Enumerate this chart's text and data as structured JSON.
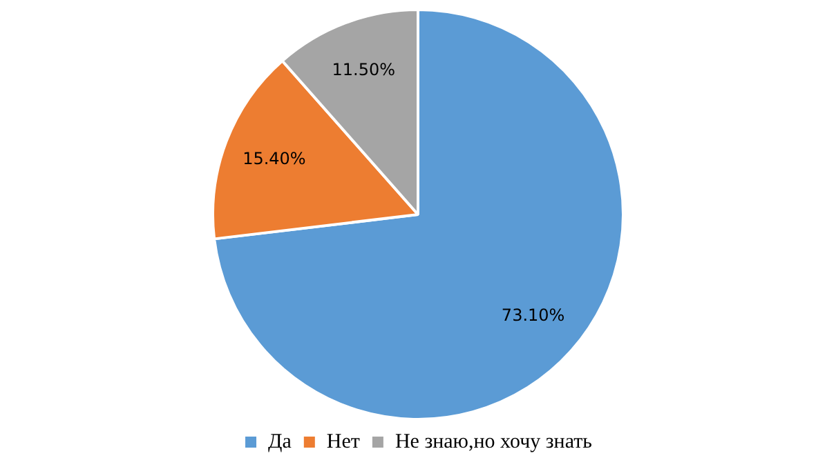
{
  "chart_data": {
    "type": "pie",
    "categories": [
      "Да",
      "Нет",
      "Не знаю,но хочу знать"
    ],
    "values": [
      73.1,
      15.4,
      11.5
    ],
    "colors": [
      "#5b9bd5",
      "#ed7d31",
      "#a5a5a5"
    ],
    "value_labels": [
      "73.10%",
      "15.40%",
      "11.50%"
    ],
    "legend": "bottom"
  }
}
